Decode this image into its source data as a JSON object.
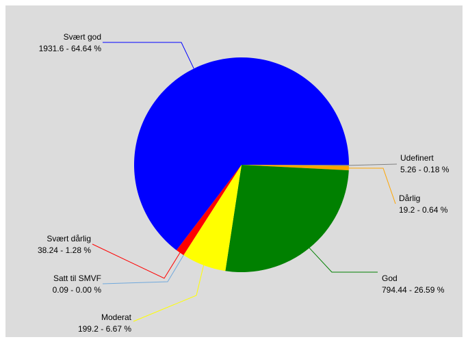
{
  "chart_data": {
    "type": "pie",
    "categories": [
      "Udefinert",
      "Dårlig",
      "God",
      "Moderat",
      "Satt til SMVF",
      "Svært dårlig",
      "Svært god"
    ],
    "values": [
      5.26,
      19.2,
      794.44,
      199.2,
      0.09,
      38.24,
      1931.6
    ],
    "value_labels": [
      "5.26 - 0.18 %",
      "19.2 - 0.64 %",
      "794.44 - 26.59 %",
      "199.2 - 6.67 %",
      "0.09 - 0.00 %",
      "38.24 - 1.28 %",
      "1931.6 - 64.64 %"
    ],
    "colors": [
      "#808080",
      "#ffa500",
      "#008000",
      "#ffff00",
      "#6fa8dc",
      "#ff0000",
      "#0000ff"
    ]
  }
}
